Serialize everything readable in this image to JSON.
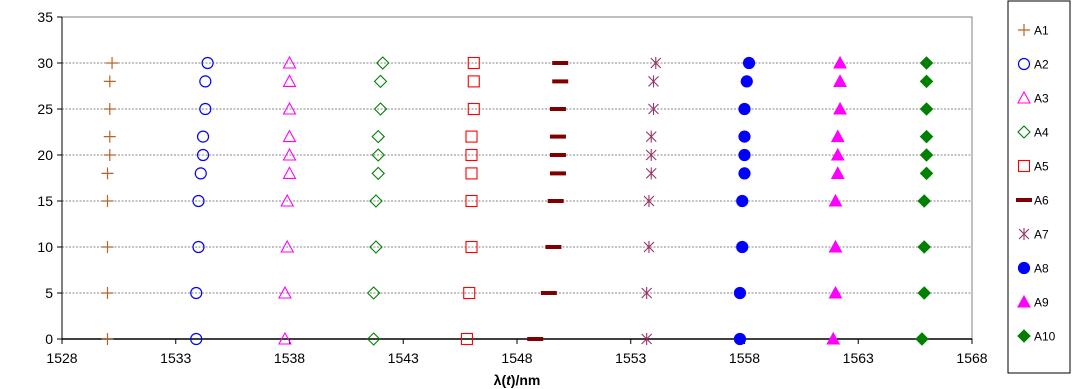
{
  "chart_data": {
    "type": "scatter",
    "xlabel_parts": [
      "λ(",
      "t",
      ")/nm"
    ],
    "xlim": [
      1528,
      1568
    ],
    "ylim": [
      0,
      35
    ],
    "x_ticks": [
      "1528",
      "1533",
      "1538",
      "1543",
      "1548",
      "1553",
      "1558",
      "1563",
      "1568"
    ],
    "y_ticks": [
      "0",
      "5",
      "10",
      "15",
      "20",
      "25",
      "30",
      "35"
    ],
    "grid": "horizontal-dashed",
    "legend_position": "right",
    "series": [
      {
        "name": "A1",
        "marker": "plus",
        "color": "#b5652a",
        "fill": false,
        "x": [
          1530.0,
          1530.0,
          1530.0,
          1530.0,
          1530.0,
          1530.1,
          1530.1,
          1530.1,
          1530.1,
          1530.2
        ],
        "y": [
          0,
          5,
          10,
          15,
          18,
          20,
          22,
          25,
          28,
          30
        ]
      },
      {
        "name": "A2",
        "marker": "circle",
        "color": "#0000ff",
        "fill": false,
        "x": [
          1533.9,
          1533.9,
          1534.0,
          1534.0,
          1534.1,
          1534.2,
          1534.2,
          1534.3,
          1534.3,
          1534.4
        ],
        "y": [
          0,
          5,
          10,
          15,
          18,
          20,
          22,
          25,
          28,
          30
        ]
      },
      {
        "name": "A3",
        "marker": "triangle",
        "color": "#ff00ff",
        "fill": false,
        "x": [
          1537.8,
          1537.8,
          1537.9,
          1537.9,
          1538.0,
          1538.0,
          1538.0,
          1538.0,
          1538.0,
          1538.0
        ],
        "y": [
          0,
          5,
          10,
          15,
          18,
          20,
          22,
          25,
          28,
          30
        ]
      },
      {
        "name": "A4",
        "marker": "diamond",
        "color": "#008000",
        "fill": false,
        "x": [
          1541.7,
          1541.7,
          1541.8,
          1541.8,
          1541.9,
          1541.9,
          1541.9,
          1542.0,
          1542.0,
          1542.1
        ],
        "y": [
          0,
          5,
          10,
          15,
          18,
          20,
          22,
          25,
          28,
          30
        ]
      },
      {
        "name": "A5",
        "marker": "square",
        "color": "#ff0000",
        "fill": false,
        "x": [
          1545.8,
          1545.9,
          1546.0,
          1546.0,
          1546.0,
          1546.0,
          1546.0,
          1546.1,
          1546.1,
          1546.1
        ],
        "y": [
          0,
          5,
          10,
          15,
          18,
          20,
          22,
          25,
          28,
          30
        ]
      },
      {
        "name": "A6",
        "marker": "dash",
        "color": "#800000",
        "fill": true,
        "x": [
          1548.8,
          1549.4,
          1549.6,
          1549.7,
          1549.8,
          1549.8,
          1549.8,
          1549.8,
          1549.9,
          1549.9
        ],
        "y": [
          0,
          5,
          10,
          15,
          18,
          20,
          22,
          25,
          28,
          30
        ]
      },
      {
        "name": "A7",
        "marker": "asterisk",
        "color": "#993366",
        "fill": false,
        "x": [
          1553.7,
          1553.7,
          1553.8,
          1553.8,
          1553.9,
          1553.9,
          1553.9,
          1554.0,
          1554.0,
          1554.1
        ],
        "y": [
          0,
          5,
          10,
          15,
          18,
          20,
          22,
          25,
          28,
          30
        ]
      },
      {
        "name": "A8",
        "marker": "circle",
        "color": "#0000ff",
        "fill": true,
        "x": [
          1557.8,
          1557.8,
          1557.9,
          1557.9,
          1558.0,
          1558.0,
          1558.0,
          1558.0,
          1558.1,
          1558.2
        ],
        "y": [
          0,
          5,
          10,
          15,
          18,
          20,
          22,
          25,
          28,
          30
        ]
      },
      {
        "name": "A9",
        "marker": "triangle",
        "color": "#ff00ff",
        "fill": true,
        "x": [
          1561.9,
          1562.0,
          1562.0,
          1562.0,
          1562.1,
          1562.1,
          1562.1,
          1562.2,
          1562.2,
          1562.2
        ],
        "y": [
          0,
          5,
          10,
          15,
          18,
          20,
          22,
          25,
          28,
          30
        ]
      },
      {
        "name": "A10",
        "marker": "diamond",
        "color": "#008000",
        "fill": true,
        "x": [
          1565.8,
          1565.9,
          1565.9,
          1565.9,
          1566.0,
          1566.0,
          1566.0,
          1566.0,
          1566.0,
          1566.0
        ],
        "y": [
          0,
          5,
          10,
          15,
          18,
          20,
          22,
          25,
          28,
          30
        ]
      }
    ]
  }
}
